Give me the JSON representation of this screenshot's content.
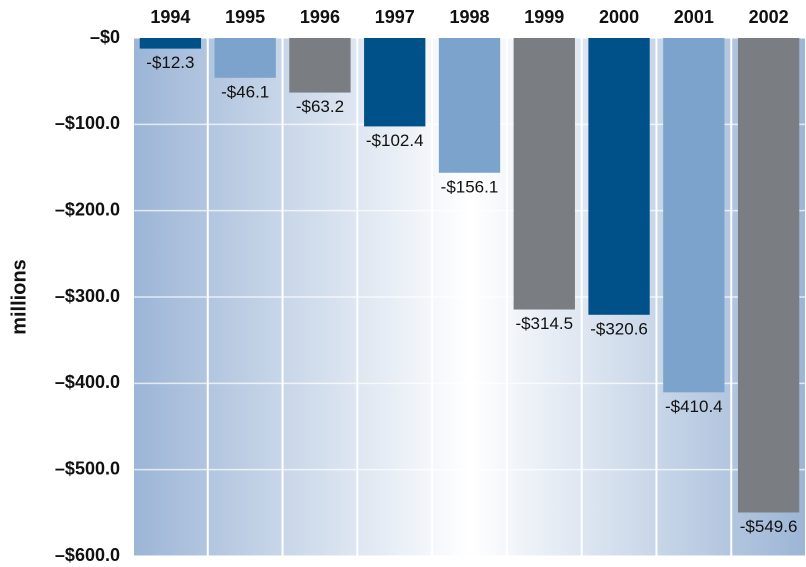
{
  "chart_data": {
    "type": "bar",
    "y_label": "millions",
    "categories": [
      "1994",
      "1995",
      "1996",
      "1997",
      "1998",
      "1999",
      "2000",
      "2001",
      "2002"
    ],
    "values": [
      -12.3,
      -46.1,
      -63.2,
      -102.4,
      -156.1,
      -314.5,
      -320.6,
      -410.4,
      -549.6
    ],
    "value_labels": [
      "-$12.3",
      "-$46.1",
      "-$63.2",
      "-$102.4",
      "-$156.1",
      "-$314.5",
      "-$320.6",
      "-$410.4",
      "-$549.6"
    ],
    "colors": [
      "#00508a",
      "#7ba3cc",
      "#7a7d82",
      "#00508a",
      "#7ba3cc",
      "#7a7d82",
      "#00508a",
      "#7ba3cc",
      "#7a7d82"
    ],
    "ylim": [
      -600,
      0
    ],
    "yticks": [
      {
        "value": 0,
        "label": "–$0"
      },
      {
        "value": -100,
        "label": "–$100.0"
      },
      {
        "value": -200,
        "label": "–$200.0"
      },
      {
        "value": -300,
        "label": "–$300.0"
      },
      {
        "value": -400,
        "label": "–$400.0"
      },
      {
        "value": -500,
        "label": "–$500.0"
      },
      {
        "value": -600,
        "label": "–$600.0"
      }
    ],
    "grid": true
  }
}
